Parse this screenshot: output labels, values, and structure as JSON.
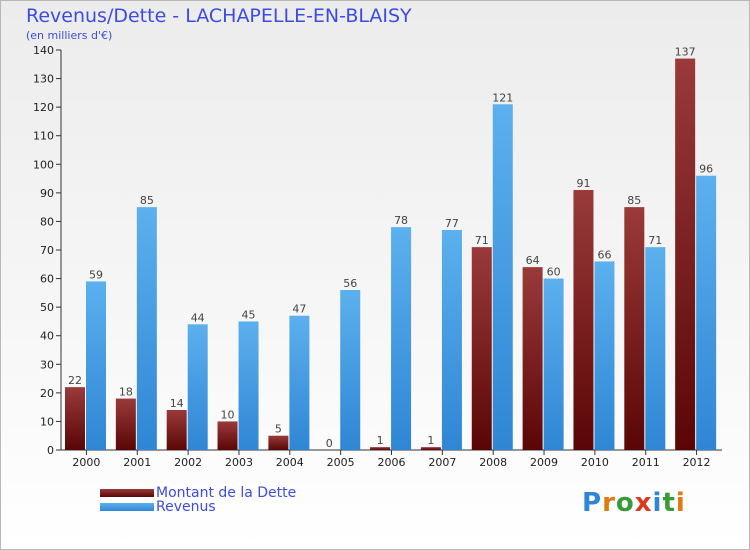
{
  "header": {
    "title": "Revenus/Dette - LACHAPELLE-EN-BLAISY",
    "subtitle": "(en milliers d'€)"
  },
  "colors": {
    "title": "#3d4ce0",
    "debt_dark": "#5a0606",
    "debt_light": "#9a3a3a",
    "revenue_dark": "#2f86d4",
    "revenue_light": "#5cb0ee"
  },
  "chart_data": {
    "type": "bar",
    "title": "Revenus/Dette - LACHAPELLE-EN-BLAISY",
    "subtitle": "(en milliers d'€)",
    "categories": [
      "2000",
      "2001",
      "2002",
      "2003",
      "2004",
      "2005",
      "2006",
      "2007",
      "2008",
      "2009",
      "2010",
      "2011",
      "2012"
    ],
    "series": [
      {
        "name": "Montant de la Dette",
        "values": [
          22,
          18,
          14,
          10,
          5,
          0,
          1,
          1,
          71,
          64,
          91,
          85,
          137
        ]
      },
      {
        "name": "Revenus",
        "values": [
          59,
          85,
          44,
          45,
          47,
          56,
          78,
          77,
          121,
          60,
          66,
          71,
          96
        ]
      }
    ],
    "ylim": [
      0,
      140
    ],
    "yticks": [
      0,
      10,
      20,
      30,
      40,
      50,
      60,
      70,
      80,
      90,
      100,
      110,
      120,
      130,
      140
    ],
    "grid": false,
    "legend": "bottom-left"
  },
  "legend": {
    "items": [
      {
        "label": "Montant de la Dette"
      },
      {
        "label": "Revenus"
      }
    ]
  },
  "logo": {
    "text": "Proxiti",
    "letter_colors": [
      "#2f86d4",
      "#e07a10",
      "#3a9a3a",
      "#d83a1a",
      "#2f86d4",
      "#3a9a3a",
      "#e07a10"
    ]
  }
}
